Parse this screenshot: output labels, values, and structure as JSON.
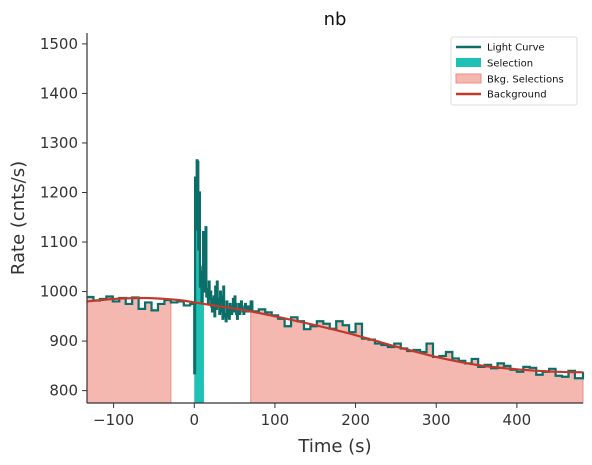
{
  "chart_data": {
    "type": "line",
    "title": "nb",
    "xlabel": "Time (s)",
    "ylabel": "Rate (cnts/s)",
    "xlim": [
      -133,
      482
    ],
    "ylim": [
      775,
      1522
    ],
    "xticks": [
      -100,
      0,
      100,
      200,
      300,
      400
    ],
    "xtick_labels": [
      "−100",
      "0",
      "100",
      "200",
      "300",
      "400"
    ],
    "yticks": [
      800,
      900,
      1000,
      1100,
      1200,
      1300,
      1400,
      1500
    ],
    "ytick_labels": [
      "800",
      "900",
      "1000",
      "1100",
      "1200",
      "1300",
      "1400",
      "1500"
    ],
    "grid": false,
    "legend_position": "top-right",
    "colors": {
      "light_curve": "#0b6e68",
      "selection": "#1fc1b4",
      "bkg_selection": "#f5b8b1",
      "bkg_selection_edge": "#ec8d86",
      "background": "#c0392b",
      "axis": "#333333"
    },
    "legend": [
      {
        "label": "Light Curve",
        "kind": "line",
        "color": "#0b6e68"
      },
      {
        "label": "Selection",
        "kind": "patch",
        "color": "#1fc1b4"
      },
      {
        "label": "Bkg. Selections",
        "kind": "patch",
        "color": "#f5b8b1"
      },
      {
        "label": "Background",
        "kind": "line",
        "color": "#c0392b"
      }
    ],
    "selection": [
      0,
      12
    ],
    "bkg_selections": [
      [
        -133,
        -29
      ],
      [
        70,
        482
      ]
    ],
    "background_curve": {
      "x": [
        -133,
        -100,
        -60,
        -20,
        0,
        20,
        60,
        100,
        150,
        200,
        250,
        300,
        350,
        400,
        450,
        482
      ],
      "y": [
        980,
        985,
        987,
        983,
        978,
        973,
        963,
        950,
        932,
        912,
        889,
        868,
        852,
        843,
        838,
        837
      ]
    },
    "light_curve": {
      "x": [
        -133,
        -125,
        -117,
        -109,
        -101,
        -93,
        -85,
        -77,
        -69,
        -61,
        -53,
        -45,
        -37,
        -29,
        -21,
        -13,
        -5,
        -2,
        0,
        1,
        2,
        3,
        4,
        5,
        6,
        7,
        8,
        9,
        10,
        11,
        12,
        13,
        14,
        15,
        16,
        17,
        18,
        19,
        20,
        21,
        22,
        23,
        24,
        25,
        26,
        27,
        28,
        29,
        30,
        31,
        32,
        33,
        34,
        35,
        36,
        37,
        38,
        39,
        40,
        41,
        42,
        43,
        44,
        45,
        46,
        47,
        48,
        49,
        50,
        51,
        52,
        53,
        54,
        55,
        56,
        57,
        58,
        59,
        60,
        61,
        62,
        63,
        64,
        65,
        66,
        67,
        68,
        69,
        70,
        72,
        80,
        88,
        96,
        104,
        112,
        120,
        128,
        136,
        144,
        152,
        160,
        168,
        176,
        184,
        192,
        200,
        208,
        216,
        224,
        232,
        240,
        248,
        256,
        264,
        272,
        280,
        288,
        296,
        304,
        312,
        320,
        328,
        336,
        344,
        352,
        360,
        368,
        376,
        384,
        392,
        400,
        408,
        416,
        424,
        432,
        440,
        448,
        456,
        464,
        472,
        482
      ],
      "y": [
        989,
        982,
        985,
        990,
        980,
        987,
        975,
        988,
        965,
        978,
        962,
        975,
        983,
        978,
        980,
        972,
        975,
        976,
        835,
        1230,
        1125,
        1265,
        1262,
        1085,
        1200,
        1010,
        1040,
        980,
        1050,
        1120,
        1000,
        1010,
        1130,
        990,
        1005,
        975,
        1020,
        985,
        1000,
        970,
        960,
        985,
        990,
        950,
        1010,
        965,
        1020,
        970,
        985,
        955,
        1000,
        990,
        960,
        945,
        1010,
        950,
        955,
        940,
        980,
        965,
        950,
        945,
        975,
        960,
        955,
        970,
        985,
        960,
        990,
        975,
        955,
        945,
        960,
        975,
        955,
        965,
        980,
        970,
        960,
        955,
        965,
        975,
        960,
        970,
        960,
        965,
        970,
        960,
        980,
        960,
        964,
        958,
        952,
        945,
        930,
        948,
        940,
        924,
        930,
        940,
        935,
        925,
        940,
        932,
        918,
        935,
        905,
        903,
        895,
        892,
        888,
        895,
        885,
        880,
        882,
        878,
        895,
        868,
        870,
        878,
        865,
        860,
        855,
        864,
        848,
        852,
        845,
        855,
        850,
        842,
        838,
        848,
        846,
        832,
        838,
        844,
        830,
        828,
        840,
        825,
        838
      ]
    }
  }
}
